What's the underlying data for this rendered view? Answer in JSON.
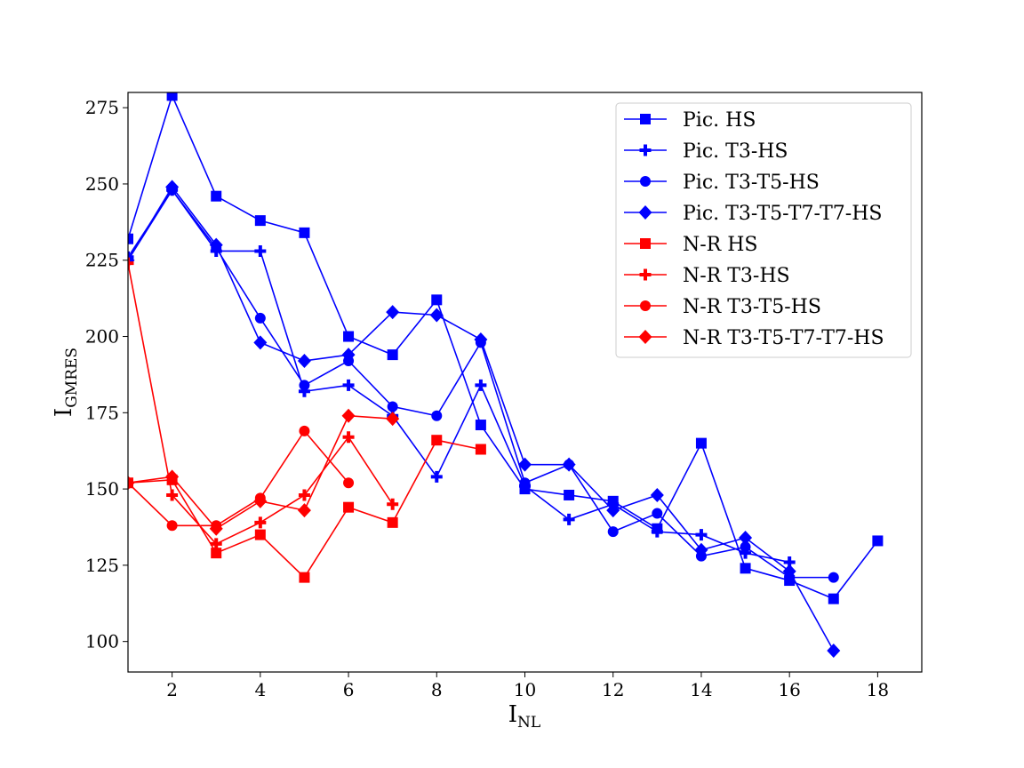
{
  "chart_data": {
    "type": "line",
    "xlabel": {
      "main": "I",
      "sub": "NL"
    },
    "ylabel": {
      "main": "I",
      "sub": "GMRES"
    },
    "xlim": [
      1,
      19
    ],
    "ylim": [
      90,
      280
    ],
    "xticks": [
      2,
      4,
      6,
      8,
      10,
      12,
      14,
      16,
      18
    ],
    "yticks": [
      100,
      125,
      150,
      175,
      200,
      225,
      250,
      275
    ],
    "grid": false,
    "legend_position": "top-right",
    "series": [
      {
        "name": "Pic. HS",
        "color": "#0000ff",
        "marker": "square",
        "x": [
          1,
          2,
          3,
          4,
          5,
          6,
          7,
          8,
          9,
          10,
          11,
          12,
          13,
          14,
          15,
          16,
          17,
          18
        ],
        "y": [
          232,
          279,
          246,
          238,
          234,
          200,
          194,
          212,
          171,
          150,
          148,
          146,
          137,
          165,
          124,
          120,
          114,
          133
        ]
      },
      {
        "name": "Pic. T3-HS",
        "color": "#0000ff",
        "marker": "plus",
        "x": [
          1,
          2,
          3,
          4,
          5,
          6,
          7,
          8,
          9,
          10,
          11,
          12,
          13,
          14,
          15,
          16
        ],
        "y": [
          226,
          248,
          228,
          228,
          182,
          184,
          174,
          154,
          184,
          151,
          140,
          145,
          136,
          135,
          129,
          126
        ]
      },
      {
        "name": "Pic. T3-T5-HS",
        "color": "#0000ff",
        "marker": "circle",
        "x": [
          1,
          2,
          3,
          4,
          5,
          6,
          7,
          8,
          9,
          10,
          11,
          12,
          13,
          14,
          15,
          16,
          17
        ],
        "y": [
          225,
          248,
          229,
          206,
          184,
          192,
          177,
          174,
          198,
          152,
          158,
          136,
          142,
          128,
          131,
          121,
          121
        ]
      },
      {
        "name": "Pic. T3-T5-T7-T7-HS",
        "color": "#0000ff",
        "marker": "diamond",
        "x": [
          1,
          2,
          3,
          4,
          5,
          6,
          7,
          8,
          9,
          10,
          11,
          12,
          13,
          14,
          15,
          16,
          17
        ],
        "y": [
          225,
          249,
          230,
          198,
          192,
          194,
          208,
          207,
          199,
          158,
          158,
          143,
          148,
          130,
          134,
          123,
          97
        ]
      },
      {
        "name": "N-R HS",
        "color": "#ff0000",
        "marker": "square",
        "x": [
          1,
          2,
          3,
          4,
          5,
          6,
          7,
          8,
          9
        ],
        "y": [
          152,
          153,
          129,
          135,
          121,
          144,
          139,
          166,
          163
        ]
      },
      {
        "name": "N-R T3-HS",
        "color": "#ff0000",
        "marker": "plus",
        "x": [
          1,
          2,
          3,
          4,
          5,
          6,
          7
        ],
        "y": [
          224,
          148,
          132,
          139,
          148,
          167,
          145
        ]
      },
      {
        "name": "N-R T3-T5-HS",
        "color": "#ff0000",
        "marker": "circle",
        "x": [
          1,
          2,
          3,
          4,
          5,
          6
        ],
        "y": [
          152,
          138,
          138,
          147,
          169,
          152
        ]
      },
      {
        "name": "N-R T3-T5-T7-T7-HS",
        "color": "#ff0000",
        "marker": "diamond",
        "x": [
          1,
          2,
          3,
          4,
          5,
          6,
          7
        ],
        "y": [
          152,
          154,
          137,
          146,
          143,
          174,
          173
        ]
      }
    ]
  }
}
